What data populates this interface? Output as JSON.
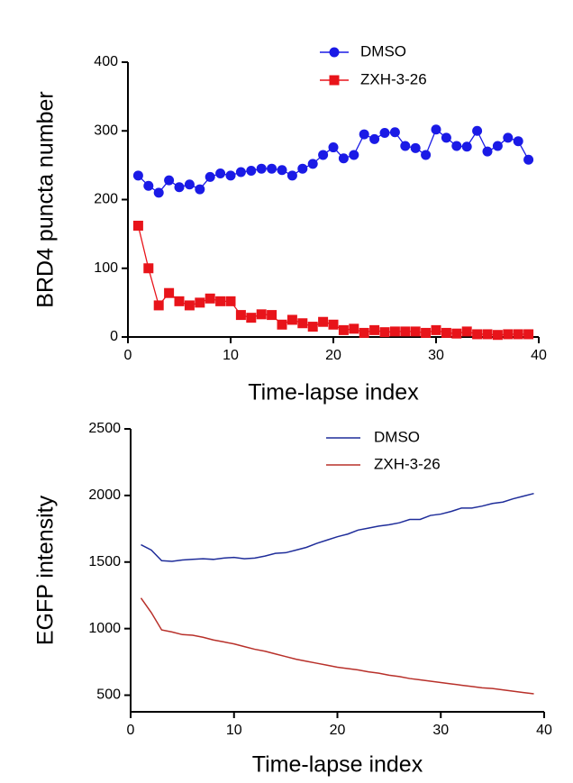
{
  "chart_data": [
    {
      "type": "line",
      "xlabel": "Time-lapse index",
      "ylabel": "BRD4 puncta number",
      "x": [
        1,
        2,
        3,
        4,
        5,
        6,
        7,
        8,
        9,
        10,
        11,
        12,
        13,
        14,
        15,
        16,
        17,
        18,
        19,
        20,
        21,
        22,
        23,
        24,
        25,
        26,
        27,
        28,
        29,
        30,
        31,
        32,
        33,
        34,
        35,
        36,
        37,
        38,
        39
      ],
      "xlim": [
        0,
        40
      ],
      "xticks": [
        0,
        10,
        20,
        30,
        40
      ],
      "ylim": [
        0,
        400
      ],
      "yticks": [
        0,
        100,
        200,
        300,
        400
      ],
      "series": [
        {
          "name": "DMSO",
          "color": "#1a1ae6",
          "marker": "circle",
          "values": [
            235,
            220,
            210,
            228,
            218,
            222,
            215,
            233,
            238,
            235,
            240,
            242,
            245,
            245,
            243,
            235,
            245,
            252,
            265,
            276,
            260,
            265,
            295,
            288,
            297,
            298,
            278,
            275,
            265,
            302,
            290,
            278,
            277,
            300,
            270,
            278,
            290,
            285,
            258
          ]
        },
        {
          "name": "ZXH-3-26",
          "color": "#e8141a",
          "marker": "square",
          "values": [
            162,
            100,
            46,
            64,
            52,
            46,
            50,
            56,
            52,
            52,
            32,
            28,
            33,
            32,
            18,
            25,
            20,
            15,
            22,
            18,
            10,
            12,
            6,
            10,
            7,
            8,
            8,
            8,
            6,
            10,
            6,
            5,
            8,
            4,
            4,
            3,
            4,
            4,
            4
          ]
        }
      ]
    },
    {
      "type": "line",
      "xlabel": "Time-lapse index",
      "ylabel": "EGFP intensity",
      "x": [
        1,
        2,
        3,
        4,
        5,
        6,
        7,
        8,
        9,
        10,
        11,
        12,
        13,
        14,
        15,
        16,
        17,
        18,
        19,
        20,
        21,
        22,
        23,
        24,
        25,
        26,
        27,
        28,
        29,
        30,
        31,
        32,
        33,
        34,
        35,
        36,
        37,
        38,
        39
      ],
      "xlim": [
        0,
        40
      ],
      "xticks": [
        0,
        10,
        20,
        30,
        40
      ],
      "ylim": [
        375,
        2500
      ],
      "yticks": [
        500,
        1000,
        1500,
        2000,
        2500
      ],
      "series": [
        {
          "name": "DMSO",
          "color": "#1f2d9a",
          "values": [
            1630,
            1590,
            1510,
            1505,
            1515,
            1520,
            1525,
            1520,
            1530,
            1535,
            1525,
            1530,
            1545,
            1565,
            1570,
            1590,
            1610,
            1640,
            1665,
            1690,
            1710,
            1740,
            1755,
            1770,
            1780,
            1795,
            1820,
            1820,
            1850,
            1860,
            1880,
            1905,
            1905,
            1920,
            1940,
            1950,
            1975,
            1995,
            2015
          ]
        },
        {
          "name": "ZXH-3-26",
          "color": "#b8302a",
          "values": [
            1230,
            1120,
            990,
            975,
            955,
            950,
            935,
            915,
            900,
            885,
            865,
            845,
            830,
            810,
            790,
            770,
            755,
            740,
            725,
            710,
            700,
            690,
            675,
            665,
            650,
            640,
            625,
            615,
            605,
            595,
            585,
            575,
            565,
            555,
            550,
            540,
            530,
            520,
            510
          ]
        }
      ]
    }
  ]
}
